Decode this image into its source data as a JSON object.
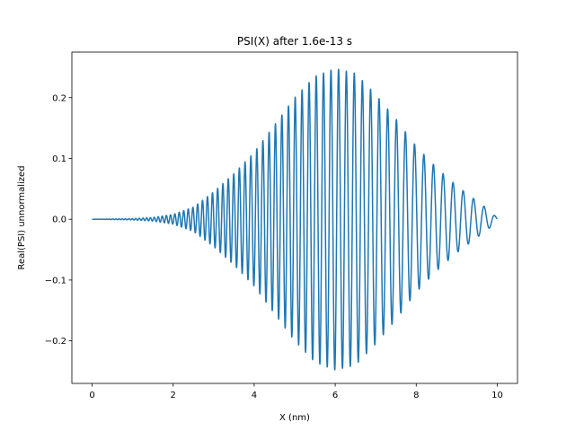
{
  "chart_data": {
    "type": "line",
    "title": "PSI(X) after 1.6e-13 s",
    "xlabel": "X (nm)",
    "ylabel": "Real(PSI) unnormalized",
    "xlim": [
      -0.5,
      10.5
    ],
    "ylim": [
      -0.27,
      0.275
    ],
    "xticks": [
      0,
      2,
      4,
      6,
      8,
      10
    ],
    "xtick_labels": [
      "0",
      "2",
      "4",
      "6",
      "8",
      "10"
    ],
    "yticks": [
      -0.2,
      -0.1,
      0.0,
      0.1,
      0.2
    ],
    "ytick_labels": [
      "−0.2",
      "−0.1",
      "0.0",
      "0.1",
      "0.2"
    ],
    "grid": false,
    "series": [
      {
        "color": "#1f77b4",
        "envelope": {
          "x": [
            0,
            1,
            1.5,
            2,
            2.5,
            3,
            3.5,
            4,
            4.5,
            5,
            5.5,
            6,
            6.5,
            7,
            7.5,
            8,
            8.5,
            9,
            9.5,
            9.8,
            10
          ],
          "y": [
            0.0,
            0.001,
            0.003,
            0.008,
            0.02,
            0.045,
            0.075,
            0.11,
            0.155,
            0.2,
            0.235,
            0.248,
            0.24,
            0.205,
            0.165,
            0.12,
            0.085,
            0.055,
            0.03,
            0.015,
            0.002
          ]
        },
        "oscillation": {
          "x_start": 0,
          "x_end": 10,
          "wavelength_at_start": 0.065,
          "wavelength_at_end": 0.27
        }
      }
    ]
  }
}
